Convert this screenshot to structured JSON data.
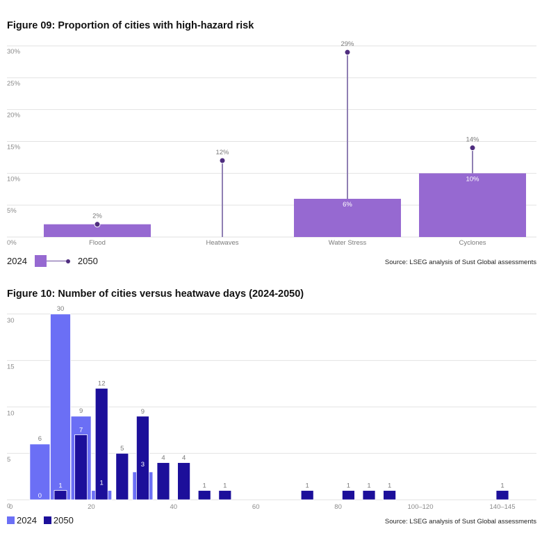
{
  "chart_data": [
    {
      "type": "bar",
      "title": "Figure 09: Proportion of cities with high-hazard risk",
      "subtype": "bar-with-lollipop",
      "categories": [
        "Flood",
        "Heatwaves",
        "Water Stress",
        "Cyclones"
      ],
      "series": [
        {
          "name": "2024",
          "values": [
            2,
            0,
            6,
            10
          ],
          "labels": [
            "",
            "",
            "6%",
            "10%"
          ],
          "color": "#9669d1",
          "mark": "bar"
        },
        {
          "name": "2050",
          "values": [
            2,
            12,
            29,
            14
          ],
          "labels": [
            "2%",
            "12%",
            "29%",
            "14%"
          ],
          "color": "#4f2d7f",
          "mark": "lollipop"
        }
      ],
      "xlabel": "",
      "ylabel": "",
      "ylim": [
        0,
        30
      ],
      "yticks": [
        0,
        5,
        10,
        15,
        20,
        25,
        30
      ],
      "ytick_labels": [
        "0%",
        "5%",
        "10%",
        "15%",
        "20%",
        "25%",
        "30%"
      ],
      "grid": true,
      "legend": {
        "placement": "bottom-left",
        "items": [
          "2024",
          "2050"
        ]
      },
      "source": "Source: LSEG analysis of Sust Global assessments"
    },
    {
      "type": "bar",
      "title": "Figure 10: Number of cities versus heatwave days (2024-2050)",
      "subtype": "overlapping-histogram",
      "bins": [
        {
          "range": [
            5,
            10
          ]
        },
        {
          "range": [
            10,
            15
          ]
        },
        {
          "range": [
            15,
            20
          ]
        },
        {
          "range": [
            20,
            25
          ]
        },
        {
          "range": [
            25,
            30
          ]
        },
        {
          "range": [
            30,
            35
          ]
        },
        {
          "range": [
            35,
            40
          ]
        },
        {
          "range": [
            40,
            45
          ]
        },
        {
          "range": [
            45,
            50
          ]
        },
        {
          "range": [
            50,
            55
          ]
        },
        {
          "range": [
            70,
            75
          ]
        },
        {
          "range": [
            80,
            85
          ]
        },
        {
          "range": [
            85,
            90
          ]
        },
        {
          "range": [
            90,
            95
          ]
        },
        {
          "range": [
            140,
            145
          ]
        }
      ],
      "series": [
        {
          "name": "2024",
          "color": "#6b6ff5",
          "values": [
            6,
            30,
            9,
            1,
            null,
            3,
            null,
            null,
            null,
            null,
            null,
            null,
            null,
            null,
            null
          ]
        },
        {
          "name": "2050",
          "color": "#1c0f9a",
          "values": [
            0,
            1,
            7,
            12,
            5,
            9,
            4,
            4,
            1,
            1,
            1,
            1,
            1,
            1,
            1
          ]
        }
      ],
      "xlabel": "",
      "ylabel": "",
      "xticks": [
        "0",
        "20",
        "40",
        "60",
        "80",
        "100–120",
        "140–145"
      ],
      "yticks": [
        0,
        5,
        10,
        15,
        30
      ],
      "ytick_labels": [
        "0",
        "5",
        "10",
        "15",
        "30"
      ],
      "ylim": [
        0,
        30
      ],
      "y_axis_note": "broken scale: 15 to 30 compressed to one gridline step",
      "grid": true,
      "legend": {
        "placement": "bottom-left",
        "items": [
          "2024",
          "2050"
        ]
      },
      "source": "Source: LSEG analysis of Sust Global assessments"
    }
  ]
}
